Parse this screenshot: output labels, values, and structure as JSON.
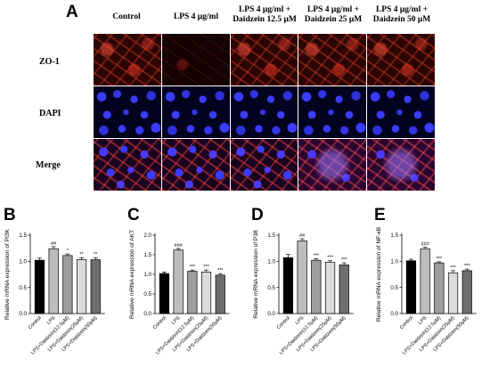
{
  "panel_a": {
    "letter": "A",
    "columns": [
      "Control",
      "LPS 4 μg/ml",
      "LPS 4 μg/ml + Daidzein 12.5 μM",
      "LPS 4 μg/ml + Daidzein 25 μM",
      "LPS 4 μg/ml + Daidzein 50 μM"
    ],
    "rows": [
      "ZO-1",
      "DAPI",
      "Merge"
    ]
  },
  "colors": {
    "control": "#000000",
    "lps": "#bdbdbd",
    "d12": "#9e9e9e",
    "d25": "#dcdcdc",
    "d50": "#6e6e6e",
    "zo1": "#ff4a30",
    "dapi": "#3a3cff"
  },
  "chart_data": [
    {
      "panel": "B",
      "type": "bar",
      "ylabel": "Relative mRNA expression of PI3K",
      "ylim": [
        0,
        1.5
      ],
      "yticks": [
        "0.0",
        "0.5",
        "1.0",
        "1.5"
      ],
      "categories": [
        "Control",
        "LPS",
        "LPS+Daidzein(12.5μM)",
        "LPS+Daidzein(25μM)",
        "LPS+Daidzein(50μM)"
      ],
      "values": [
        1.02,
        1.24,
        1.11,
        1.03,
        1.03
      ],
      "errors": [
        0.04,
        0.04,
        0.03,
        0.04,
        0.04
      ],
      "annotations": [
        "",
        "##",
        "*",
        "**",
        "**"
      ]
    },
    {
      "panel": "C",
      "type": "bar",
      "ylabel": "Relative mRNA expression of AKT",
      "ylim": [
        0,
        2.0
      ],
      "yticks": [
        "0.0",
        "0.5",
        "1.0",
        "1.5",
        "2.0"
      ],
      "categories": [
        "Control",
        "LPS",
        "LPS+Daidzein(12.5μM)",
        "LPS+Daidzein(25μM)",
        "LPS+Daidzein(50μM)"
      ],
      "values": [
        1.02,
        1.62,
        1.08,
        1.06,
        0.98
      ],
      "errors": [
        0.04,
        0.04,
        0.03,
        0.05,
        0.04
      ],
      "annotations": [
        "",
        "###",
        "***",
        "***",
        "***"
      ]
    },
    {
      "panel": "D",
      "type": "bar",
      "ylabel": "Relative mRNA expression of P38",
      "ylim": [
        0,
        1.5
      ],
      "yticks": [
        "0.0",
        "0.5",
        "1.0",
        "1.5"
      ],
      "categories": [
        "Control",
        "LPS",
        "LPS+Daidzein(12.5μM)",
        "LPS+Daidzein(25μM)",
        "LPS+Daidzein(50μM)"
      ],
      "values": [
        1.07,
        1.39,
        1.02,
        0.98,
        0.93
      ],
      "errors": [
        0.06,
        0.04,
        0.03,
        0.03,
        0.04
      ],
      "annotations": [
        "",
        "##",
        "***",
        "***",
        "***"
      ]
    },
    {
      "panel": "E",
      "type": "bar",
      "ylabel": "Relative mRNA expression of NF-κB",
      "ylim": [
        0,
        1.5
      ],
      "yticks": [
        "0.0",
        "0.5",
        "1.0",
        "1.5"
      ],
      "categories": [
        "Control",
        "LPS",
        "LPS+Daidzein(12.5μM)",
        "LPS+Daidzein(25μM)",
        "LPS+Daidzein(50μM)"
      ],
      "values": [
        1.01,
        1.24,
        0.97,
        0.78,
        0.82
      ],
      "errors": [
        0.03,
        0.03,
        0.02,
        0.04,
        0.03
      ],
      "annotations": [
        "",
        "###",
        "***",
        "***",
        "***"
      ]
    }
  ]
}
